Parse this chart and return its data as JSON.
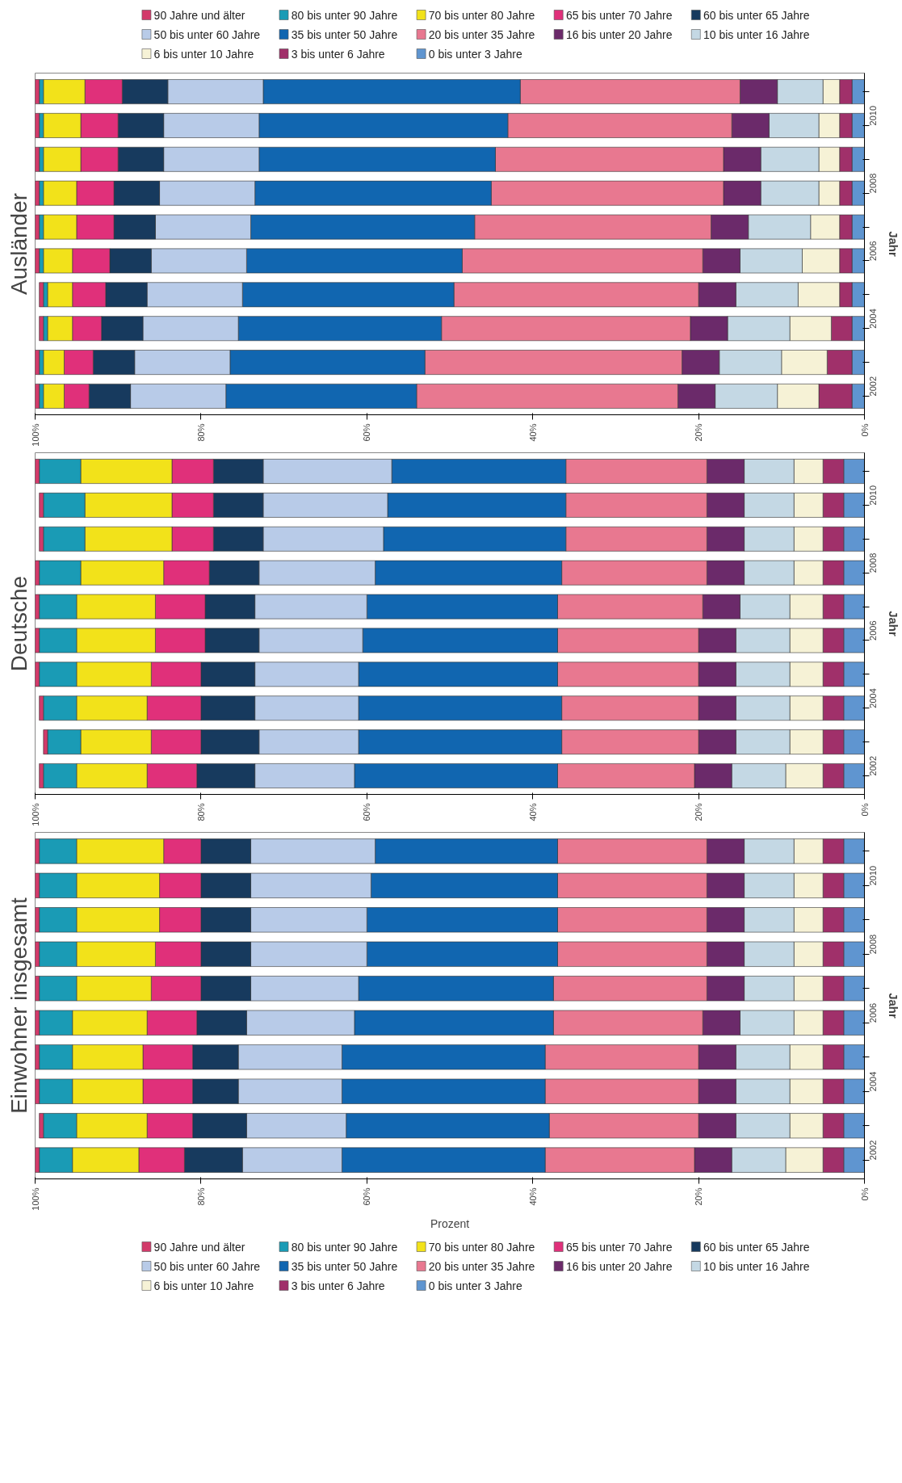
{
  "chart_data": [
    {
      "type": "bar",
      "orientation": "horizontal",
      "stacked": true,
      "title": "Ausländer",
      "ylabel": "Jahr",
      "legend": "top",
      "grid": false,
      "categories": [
        null,
        "2010",
        null,
        "2008",
        null,
        "2006",
        null,
        "2004",
        null,
        "2002"
      ],
      "xlim": [
        100,
        0
      ],
      "xticks": [
        {
          "value": 100,
          "label": "100%"
        },
        {
          "value": 80,
          "label": "80%"
        },
        {
          "value": 60,
          "label": "60%"
        },
        {
          "value": 40,
          "label": "40%"
        },
        {
          "value": 20,
          "label": "20%"
        },
        {
          "value": 0,
          "label": "0%"
        }
      ],
      "series": [
        {
          "name": "0 bis unter 3 Jahre",
          "color": "#5f95d0",
          "values": [
            1.5,
            1.5,
            1.5,
            1.5,
            1.5,
            1.5,
            1.5,
            1.5,
            1.5,
            1.5
          ]
        },
        {
          "name": "3 bis unter 6 Jahre",
          "color": "#a0306a",
          "values": [
            1.5,
            1.5,
            1.5,
            1.5,
            1.5,
            1.5,
            1.5,
            2.5,
            3,
            4
          ]
        },
        {
          "name": "6 bis unter 10 Jahre",
          "color": "#f6f2d6",
          "values": [
            2,
            2.5,
            2.5,
            2.5,
            3.5,
            4.5,
            5,
            5,
            5.5,
            5
          ]
        },
        {
          "name": "10 bis unter 16 Jahre",
          "color": "#c4d8e4",
          "values": [
            5.5,
            6,
            7,
            7,
            7.5,
            7.5,
            7.5,
            7.5,
            7.5,
            7.5
          ]
        },
        {
          "name": "16 bis unter 20 Jahre",
          "color": "#6b2a6a",
          "values": [
            4.5,
            4.5,
            4.5,
            4.5,
            4.5,
            4.5,
            4.5,
            4.5,
            4.5,
            4.5
          ]
        },
        {
          "name": "20 bis unter 35 Jahre",
          "color": "#e87890",
          "values": [
            26.5,
            27,
            27.5,
            28,
            28.5,
            29,
            29.5,
            30,
            31,
            31.5
          ]
        },
        {
          "name": "35 bis unter 50 Jahre",
          "color": "#1166b0",
          "values": [
            31,
            30,
            28.5,
            28.5,
            27,
            26,
            25.5,
            24.5,
            23.5,
            23
          ]
        },
        {
          "name": "50 bis unter 60 Jahre",
          "color": "#b8cbe8",
          "values": [
            11.5,
            11.5,
            11.5,
            11.5,
            11.5,
            11.5,
            11.5,
            11.5,
            11.5,
            11.5
          ]
        },
        {
          "name": "60 bis unter 65 Jahre",
          "color": "#173a5e",
          "values": [
            5.5,
            5.5,
            5.5,
            5.5,
            5,
            5,
            5,
            5,
            5,
            5
          ]
        },
        {
          "name": "65 bis unter 70 Jahre",
          "color": "#e0307a",
          "values": [
            4.5,
            4.5,
            4.5,
            4.5,
            4.5,
            4.5,
            4,
            3.5,
            3.5,
            3
          ]
        },
        {
          "name": "70 bis unter 80 Jahre",
          "color": "#f2e21a",
          "values": [
            5,
            4.5,
            4.5,
            4,
            4,
            3.5,
            3,
            3,
            2.5,
            2.5
          ]
        },
        {
          "name": "80 bis unter 90 Jahre",
          "color": "#1a9bb5",
          "values": [
            0.5,
            0.5,
            0.5,
            0.5,
            0.5,
            0.5,
            0.5,
            0.5,
            0.5,
            0.5
          ]
        },
        {
          "name": "90 Jahre und älter",
          "color": "#d23a6a",
          "values": [
            0.5,
            0.5,
            0.5,
            0.5,
            0.5,
            0.5,
            0.5,
            0.5,
            0.5,
            0.5
          ]
        }
      ]
    },
    {
      "type": "bar",
      "orientation": "horizontal",
      "stacked": true,
      "title": "Deutsche",
      "ylabel": "Jahr",
      "grid": false,
      "categories": [
        null,
        "2010",
        null,
        "2008",
        null,
        "2006",
        null,
        "2004",
        null,
        "2002"
      ],
      "xlim": [
        100,
        0
      ],
      "xticks": [
        {
          "value": 100,
          "label": "100%"
        },
        {
          "value": 80,
          "label": "80%"
        },
        {
          "value": 60,
          "label": "60%"
        },
        {
          "value": 40,
          "label": "40%"
        },
        {
          "value": 20,
          "label": "20%"
        },
        {
          "value": 0,
          "label": "0%"
        }
      ],
      "series": [
        {
          "color": "#5f95d0",
          "values": [
            2.5,
            2.5,
            2.5,
            2.5,
            2.5,
            2.5,
            2.5,
            2.5,
            2.5,
            2.5
          ]
        },
        {
          "color": "#a0306a",
          "values": [
            2.5,
            2.5,
            2.5,
            2.5,
            2.5,
            2.5,
            2.5,
            2.5,
            2.5,
            2.5
          ]
        },
        {
          "color": "#f6f2d6",
          "values": [
            3.5,
            3.5,
            3.5,
            3.5,
            4,
            4,
            4,
            4,
            4,
            4.5
          ]
        },
        {
          "color": "#c4d8e4",
          "values": [
            6,
            6,
            6,
            6,
            6,
            6.5,
            6.5,
            6.5,
            6.5,
            6.5
          ]
        },
        {
          "color": "#6b2a6a",
          "values": [
            4.5,
            4.5,
            4.5,
            4.5,
            4.5,
            4.5,
            4.5,
            4.5,
            4.5,
            4.5
          ]
        },
        {
          "color": "#e87890",
          "values": [
            17,
            17,
            17,
            17.5,
            17.5,
            17,
            17,
            16.5,
            16.5,
            16.5
          ]
        },
        {
          "color": "#1166b0",
          "values": [
            21,
            21.5,
            22,
            22.5,
            23,
            23.5,
            24,
            24.5,
            24.5,
            24.5
          ]
        },
        {
          "color": "#b8cbe8",
          "values": [
            15.5,
            15,
            14.5,
            14,
            13.5,
            12.5,
            12.5,
            12.5,
            12,
            12
          ]
        },
        {
          "color": "#173a5e",
          "values": [
            6,
            6,
            6,
            6,
            6,
            6.5,
            6.5,
            6.5,
            7,
            7
          ]
        },
        {
          "color": "#e0307a",
          "values": [
            5,
            5,
            5,
            5.5,
            6,
            6,
            6,
            6.5,
            6,
            6
          ]
        },
        {
          "color": "#f2e21a",
          "values": [
            11,
            10.5,
            10.5,
            10,
            9.5,
            9.5,
            9,
            8.5,
            8.5,
            8.5
          ]
        },
        {
          "color": "#1a9bb5",
          "values": [
            5,
            5,
            5,
            5,
            4.5,
            4.5,
            4.5,
            4,
            4,
            4
          ]
        },
        {
          "color": "#d23a6a",
          "values": [
            0.5,
            0.5,
            0.5,
            0.5,
            0.5,
            0.5,
            0.5,
            0.5,
            0.5,
            0.5
          ]
        }
      ]
    },
    {
      "type": "bar",
      "orientation": "horizontal",
      "stacked": true,
      "title": "Einwohner insgesamt",
      "ylabel": "Jahr",
      "xlabel": "Prozent",
      "legend": "bottom",
      "grid": false,
      "categories": [
        null,
        "2010",
        null,
        "2008",
        null,
        "2006",
        null,
        "2004",
        null,
        "2002"
      ],
      "xlim": [
        100,
        0
      ],
      "xticks": [
        {
          "value": 100,
          "label": "100%"
        },
        {
          "value": 80,
          "label": "80%"
        },
        {
          "value": 60,
          "label": "60%"
        },
        {
          "value": 40,
          "label": "40%"
        },
        {
          "value": 20,
          "label": "20%"
        },
        {
          "value": 0,
          "label": "0%"
        }
      ],
      "series": [
        {
          "name": "0 bis unter 3 Jahre",
          "color": "#5f95d0",
          "values": [
            2.5,
            2.5,
            2.5,
            2.5,
            2.5,
            2.5,
            2.5,
            2.5,
            2.5,
            2.5
          ]
        },
        {
          "name": "3 bis unter 6 Jahre",
          "color": "#a0306a",
          "values": [
            2.5,
            2.5,
            2.5,
            2.5,
            2.5,
            2.5,
            2.5,
            2.5,
            2.5,
            2.5
          ]
        },
        {
          "name": "6 bis unter 10 Jahre",
          "color": "#f6f2d6",
          "values": [
            3.5,
            3.5,
            3.5,
            3.5,
            3.5,
            3.5,
            4,
            4,
            4,
            4.5
          ]
        },
        {
          "name": "10 bis unter 16 Jahre",
          "color": "#c4d8e4",
          "values": [
            6,
            6,
            6,
            6,
            6,
            6.5,
            6.5,
            6.5,
            6.5,
            6.5
          ]
        },
        {
          "name": "16 bis unter 20 Jahre",
          "color": "#6b2a6a",
          "values": [
            4.5,
            4.5,
            4.5,
            4.5,
            4.5,
            4.5,
            4.5,
            4.5,
            4.5,
            4.5
          ]
        },
        {
          "name": "20 bis unter 35 Jahre",
          "color": "#e87890",
          "values": [
            18,
            18,
            18,
            18,
            18.5,
            18,
            18.5,
            18.5,
            18,
            18
          ]
        },
        {
          "name": "35 bis unter 50 Jahre",
          "color": "#1166b0",
          "values": [
            22,
            22.5,
            23,
            23,
            23.5,
            24,
            24.5,
            24.5,
            24.5,
            24.5
          ]
        },
        {
          "name": "50 bis unter 60 Jahre",
          "color": "#b8cbe8",
          "values": [
            15,
            14.5,
            14,
            14,
            13,
            13,
            12.5,
            12.5,
            12,
            12
          ]
        },
        {
          "name": "60 bis unter 65 Jahre",
          "color": "#173a5e",
          "values": [
            6,
            6,
            6,
            6,
            6,
            6,
            5.5,
            5.5,
            6.5,
            7
          ]
        },
        {
          "name": "65 bis unter 70 Jahre",
          "color": "#e0307a",
          "values": [
            4.5,
            5,
            5,
            5.5,
            6,
            6,
            6,
            6,
            5.5,
            5.5
          ]
        },
        {
          "name": "70 bis unter 80 Jahre",
          "color": "#f2e21a",
          "values": [
            10.5,
            10,
            10,
            9.5,
            9,
            9,
            8.5,
            8.5,
            8.5,
            8
          ]
        },
        {
          "name": "80 bis unter 90 Jahre",
          "color": "#1a9bb5",
          "values": [
            4.5,
            4.5,
            4.5,
            4.5,
            4.5,
            4,
            4,
            4,
            4,
            4
          ]
        },
        {
          "name": "90 Jahre und älter",
          "color": "#d23a6a",
          "values": [
            0.5,
            0.5,
            0.5,
            0.5,
            0.5,
            0.5,
            0.5,
            0.5,
            0.5,
            0.5
          ]
        }
      ]
    }
  ]
}
